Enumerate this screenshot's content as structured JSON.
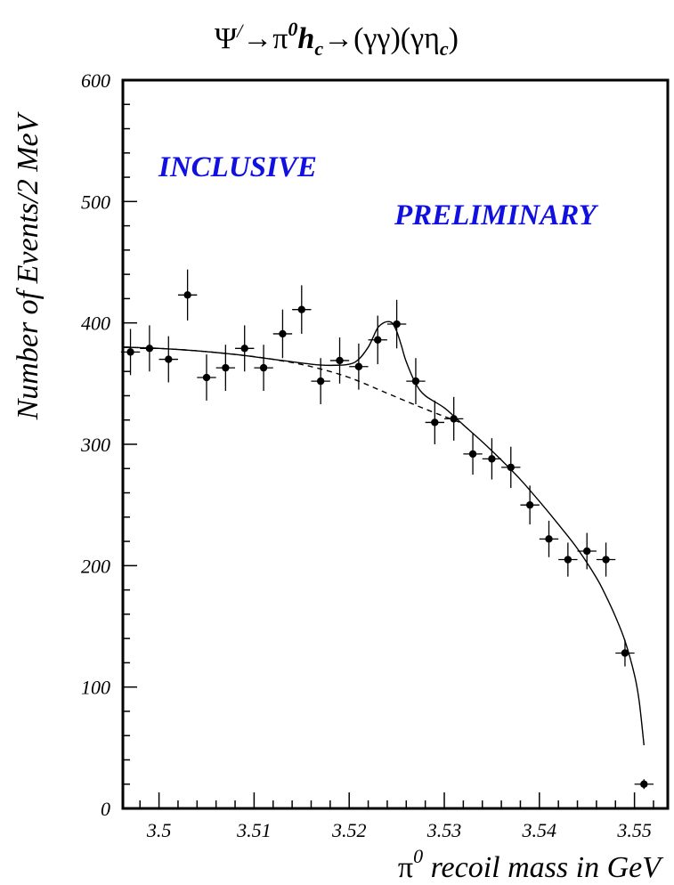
{
  "chart_data": {
    "type": "scatter",
    "title": "Ψ′→π⁰hc→(γγ)(γηc)",
    "title_parts": {
      "psi": "Ψ",
      "prime": "/",
      "arrow1": "→π",
      "sup0": "0",
      "h": "h",
      "c1": "c",
      "arrow2": "→(γγ)(γη",
      "c2": "c",
      "close": ")"
    },
    "xlabel": "recoil mass in GeV",
    "xlabel_prefix": "π",
    "xlabel_sup": "0",
    "ylabel": "Number of Events/2 MeV",
    "xlim": [
      3.4962,
      3.5535
    ],
    "ylim": [
      0,
      600
    ],
    "x_ticks": [
      3.5,
      3.51,
      3.52,
      3.53,
      3.54,
      3.55
    ],
    "x_tick_labels": [
      "3.5",
      "3.51",
      "3.52",
      "3.53",
      "3.54",
      "3.55"
    ],
    "y_ticks": [
      0,
      100,
      200,
      300,
      400,
      500,
      600
    ],
    "y_tick_labels": [
      "0",
      "100",
      "200",
      "300",
      "400",
      "500",
      "600"
    ],
    "grid": false,
    "annotations": [
      "INCLUSIVE",
      "PRELIMINARY"
    ],
    "colors": {
      "annotation": "#1010e0",
      "data": "#000000"
    },
    "x_half_width": 0.001,
    "series": [
      {
        "type": "errorbar",
        "x": [
          3.497,
          3.499,
          3.501,
          3.503,
          3.505,
          3.507,
          3.509,
          3.511,
          3.513,
          3.515,
          3.517,
          3.519,
          3.521,
          3.523,
          3.525,
          3.527,
          3.529,
          3.531,
          3.533,
          3.535,
          3.537,
          3.539,
          3.541,
          3.543,
          3.545,
          3.547,
          3.549,
          3.551
        ],
        "y": [
          376,
          379,
          370,
          423,
          355,
          363,
          379,
          363,
          391,
          411,
          352,
          369,
          364,
          386,
          399,
          352,
          318,
          321,
          292,
          288,
          281,
          250,
          222,
          205,
          212,
          205,
          128,
          20
        ],
        "y_err": [
          19,
          19,
          19,
          21,
          19,
          19,
          19,
          19,
          20,
          20,
          19,
          19,
          19,
          20,
          20,
          19,
          18,
          18,
          17,
          17,
          17,
          16,
          15,
          14,
          15,
          14,
          11,
          4
        ]
      },
      {
        "type": "line",
        "style": "solid",
        "x": [
          3.4962,
          3.5,
          3.504,
          3.508,
          3.512,
          3.516,
          3.518,
          3.52,
          3.521,
          3.522,
          3.5225,
          3.523,
          3.5235,
          3.524,
          3.5245,
          3.525,
          3.5255,
          3.526,
          3.527,
          3.528,
          3.53,
          3.532,
          3.534,
          3.536,
          3.538,
          3.54,
          3.542,
          3.544,
          3.546,
          3.547,
          3.548,
          3.549,
          3.55,
          3.5505,
          3.551
        ],
        "y": [
          380,
          379,
          377,
          374,
          370,
          366,
          365,
          366,
          370,
          380,
          388,
          396,
          399.5,
          401,
          400,
          393,
          381,
          368,
          350,
          340,
          330,
          316,
          302,
          287,
          271,
          253,
          234,
          214,
          190,
          175,
          158,
          138,
          110,
          88,
          52
        ]
      },
      {
        "type": "line",
        "style": "dashed",
        "x": [
          3.4962,
          3.5,
          3.504,
          3.508,
          3.512,
          3.516,
          3.52,
          3.524,
          3.528,
          3.532
        ],
        "y": [
          380,
          379,
          377,
          374,
          370,
          364,
          355,
          342,
          329,
          317
        ]
      }
    ]
  }
}
